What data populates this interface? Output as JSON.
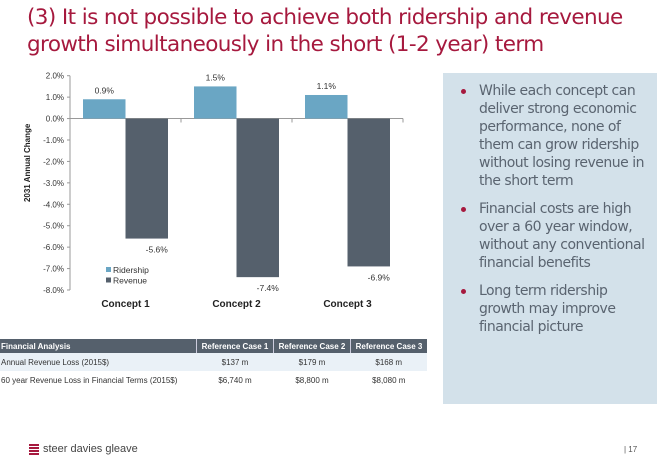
{
  "title": {
    "line1": "(3) It is not possible to achieve both ridership and revenue",
    "line2": "growth simultaneously in the short (1-2 year) term"
  },
  "chart_data": {
    "type": "bar",
    "categories": [
      "Concept 1",
      "Concept 2",
      "Concept 3"
    ],
    "series": [
      {
        "name": "Ridership",
        "values": [
          0.9,
          1.5,
          1.1
        ],
        "labels": [
          "0.9%",
          "1.5%",
          "1.1%"
        ],
        "color": "#6aa6c4"
      },
      {
        "name": "Revenue",
        "values": [
          -5.6,
          -7.4,
          -6.9
        ],
        "labels": [
          "-5.6%",
          "-7.4%",
          "-6.9%"
        ],
        "color": "#55606c"
      }
    ],
    "ylabel": "2031 Annual Change",
    "ylim": [
      -8,
      2
    ],
    "yticks": [
      "2.0%",
      "1.0%",
      "0.0%",
      "-1.0%",
      "-2.0%",
      "-3.0%",
      "-4.0%",
      "-5.0%",
      "-6.0%",
      "-7.0%",
      "-8.0%"
    ],
    "legend": "bottom-left",
    "grid": false
  },
  "table": {
    "headers": [
      "Financial Analysis",
      "Reference Case 1",
      "Reference Case 2",
      "Reference Case 3"
    ],
    "rows": [
      [
        "Annual Revenue Loss (2015$)",
        "$137 m",
        "$179 m",
        "$168 m"
      ],
      [
        "60 year Revenue Loss  in Financial Terms (2015$)",
        "$6,740 m",
        "$8,800 m",
        "$8,080 m"
      ]
    ]
  },
  "panel": {
    "bullets": [
      "While each concept can deliver strong economic performance, none of them can grow ridership without losing revenue in the short term",
      "Financial costs are high over a 60 year window, without any conventional financial benefits",
      "Long term ridership growth may improve financial picture"
    ]
  },
  "footer": {
    "logo": "steer davies gleave",
    "page": "| 17"
  }
}
